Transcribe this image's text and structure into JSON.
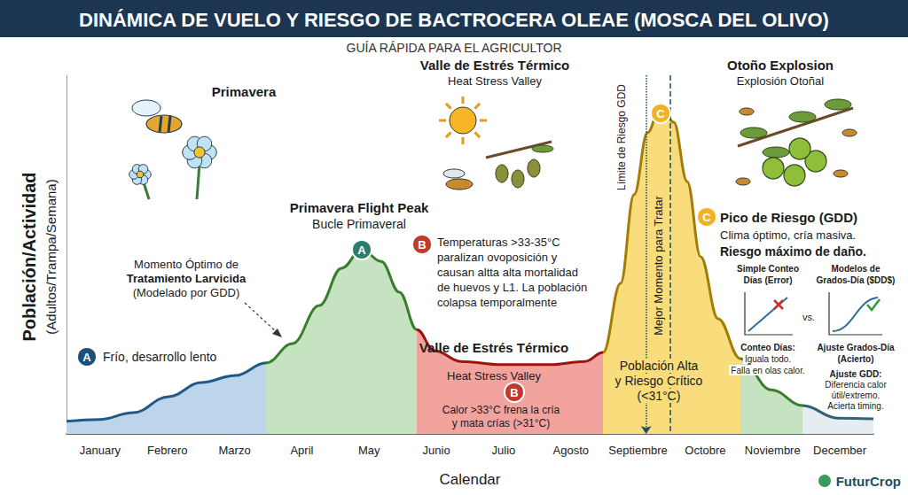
{
  "chart_data": {
    "type": "line",
    "title": "DINÁMICA DE VUELO Y RIESGO DE BACTROCERA OLEAE (MOSCA DEL OLIVO)",
    "subtitle": "GUÍA RÁPIDA PARA EL AGRICULTOR",
    "x_label": "Calendar",
    "y_label": "Población/Actividad",
    "y_label_note": "(Adultos/Trampa/Semana)",
    "x": [
      0,
      0.49,
      0.99,
      1.52,
      2.0,
      2.51,
      2.97,
      3.36,
      3.76,
      4.09,
      4.39,
      4.68,
      4.95,
      5.21,
      5.47,
      5.87,
      6.47,
      7.19,
      7.71,
      7.98,
      8.24,
      8.44,
      8.64,
      8.84,
      9.03,
      9.23,
      9.43,
      9.69,
      10.02,
      10.48,
      10.95,
      11.47,
      12
    ],
    "values": [
      3.5,
      4.0,
      5.9,
      10.4,
      14.3,
      16.3,
      19.8,
      25.2,
      35.8,
      46.2,
      51.4,
      48.1,
      39.5,
      29.1,
      23.2,
      20.2,
      19.3,
      19.3,
      20.2,
      22.7,
      42.0,
      66.7,
      84.0,
      91.9,
      86.9,
      70.4,
      49.4,
      32.1,
      21.0,
      12.3,
      7.9,
      4.4,
      4.2
    ],
    "xlim": [
      0,
      12
    ],
    "xticks": [
      {
        "value": 0.5,
        "label": "January"
      },
      {
        "value": 1.5,
        "label": "Febrero"
      },
      {
        "value": 2.5,
        "label": "Marzo"
      },
      {
        "value": 3.5,
        "label": "April"
      },
      {
        "value": 4.5,
        "label": "May"
      },
      {
        "value": 5.5,
        "label": "Junio"
      },
      {
        "value": 6.5,
        "label": "Julio"
      },
      {
        "value": 7.5,
        "label": "Agosto"
      },
      {
        "value": 8.5,
        "label": "Septiembre"
      },
      {
        "value": 9.5,
        "label": "Octobre"
      },
      {
        "value": 10.5,
        "label": "Noviembre"
      },
      {
        "value": 11.5,
        "label": "December"
      }
    ],
    "ylim": [
      0,
      100
    ],
    "tick_labels": "x",
    "grid": false,
    "zones": [
      {
        "from": 0,
        "to": 2.97,
        "color": "#bcd5ea"
      },
      {
        "from": 2.97,
        "to": 5.21,
        "color": "#c6e3c1"
      },
      {
        "from": 5.21,
        "to": 7.98,
        "color": "#f3a39e"
      },
      {
        "from": 7.98,
        "to": 10.02,
        "color": "#f9dc7c"
      },
      {
        "from": 10.02,
        "to": 10.95,
        "color": "#c6e3c1"
      },
      {
        "from": 10.95,
        "to": 12,
        "color": "#e6edf0"
      }
    ],
    "vlines": [
      {
        "x": 8.62,
        "label": "Límite de Riesgo GDD",
        "line_style": "dotted"
      },
      {
        "x": 8.98,
        "label": "Mejor Momento para Tratar",
        "line_style": "dashed"
      }
    ],
    "annotations": {
      "season_primavera": {
        "lines": [
          "Primavera"
        ]
      },
      "season_valle": {
        "lines": [
          "Valle de Estrés Térmico",
          "Heat Stress Valley"
        ]
      },
      "season_otono": {
        "lines": [
          "Otoño Explosion",
          "Explosión Otoñal"
        ]
      },
      "peak_primavera": {
        "badge": "A",
        "lines": [
          "Primavera Flight Peak",
          "Bucle Primaveral"
        ]
      },
      "larvicida": {
        "lines": [
          "Momento Óptimo de",
          "Tratamiento Larvicida",
          "(Modelado por GDD)"
        ]
      },
      "frio": {
        "badge": "A",
        "lines": [
          "Frío, desarrollo lento"
        ]
      },
      "temperaturas": {
        "badge": "B",
        "lines": [
          "Temperaturas >33-35°C",
          "paralizan ovoposición y",
          "causan altta alta mortalidad",
          "de huevos y L1. La población",
          "colapsa temporalmente"
        ]
      },
      "valle": {
        "lines": [
          "Valle de Estrés Térmico",
          "Heat Stress Valley"
        ]
      },
      "calor": {
        "badge": "B",
        "lines": [
          "Calor >33°C frena la cría",
          "y mata crías (>31°C)"
        ]
      },
      "poblacion": {
        "lines": [
          "Población Alta",
          "y Riesgo Crítico",
          "(<31°C)"
        ]
      },
      "peak_otono": {
        "badge": "C"
      },
      "pico": {
        "badge": "C",
        "lines": [
          "Pico de Riesgo (GDD)",
          "Clima óptimo, cría masiva.",
          "Riesgo máximo de daño."
        ]
      },
      "conteo_head": {
        "lines": [
          "Simple Conteo",
          "Días (Error)"
        ]
      },
      "vs": {
        "lines": [
          "vs."
        ]
      },
      "modelos_head": {
        "lines": [
          "Modelos de",
          "Grados-Día ($DD$)"
        ]
      },
      "conteo_note": {
        "lines": [
          "Conteo Días:",
          "Iguala todo.",
          "Falla en olas calor."
        ]
      },
      "ajuste_head": {
        "lines": [
          "Ajuste Grados-Día",
          "(Acierto)"
        ]
      },
      "ajuste_note": {
        "lines": [
          "Ajuste GDD:",
          "Diferencia calor",
          "útil/extremo.",
          "Acierta timing."
        ]
      }
    },
    "brand": "FuturCrop"
  }
}
